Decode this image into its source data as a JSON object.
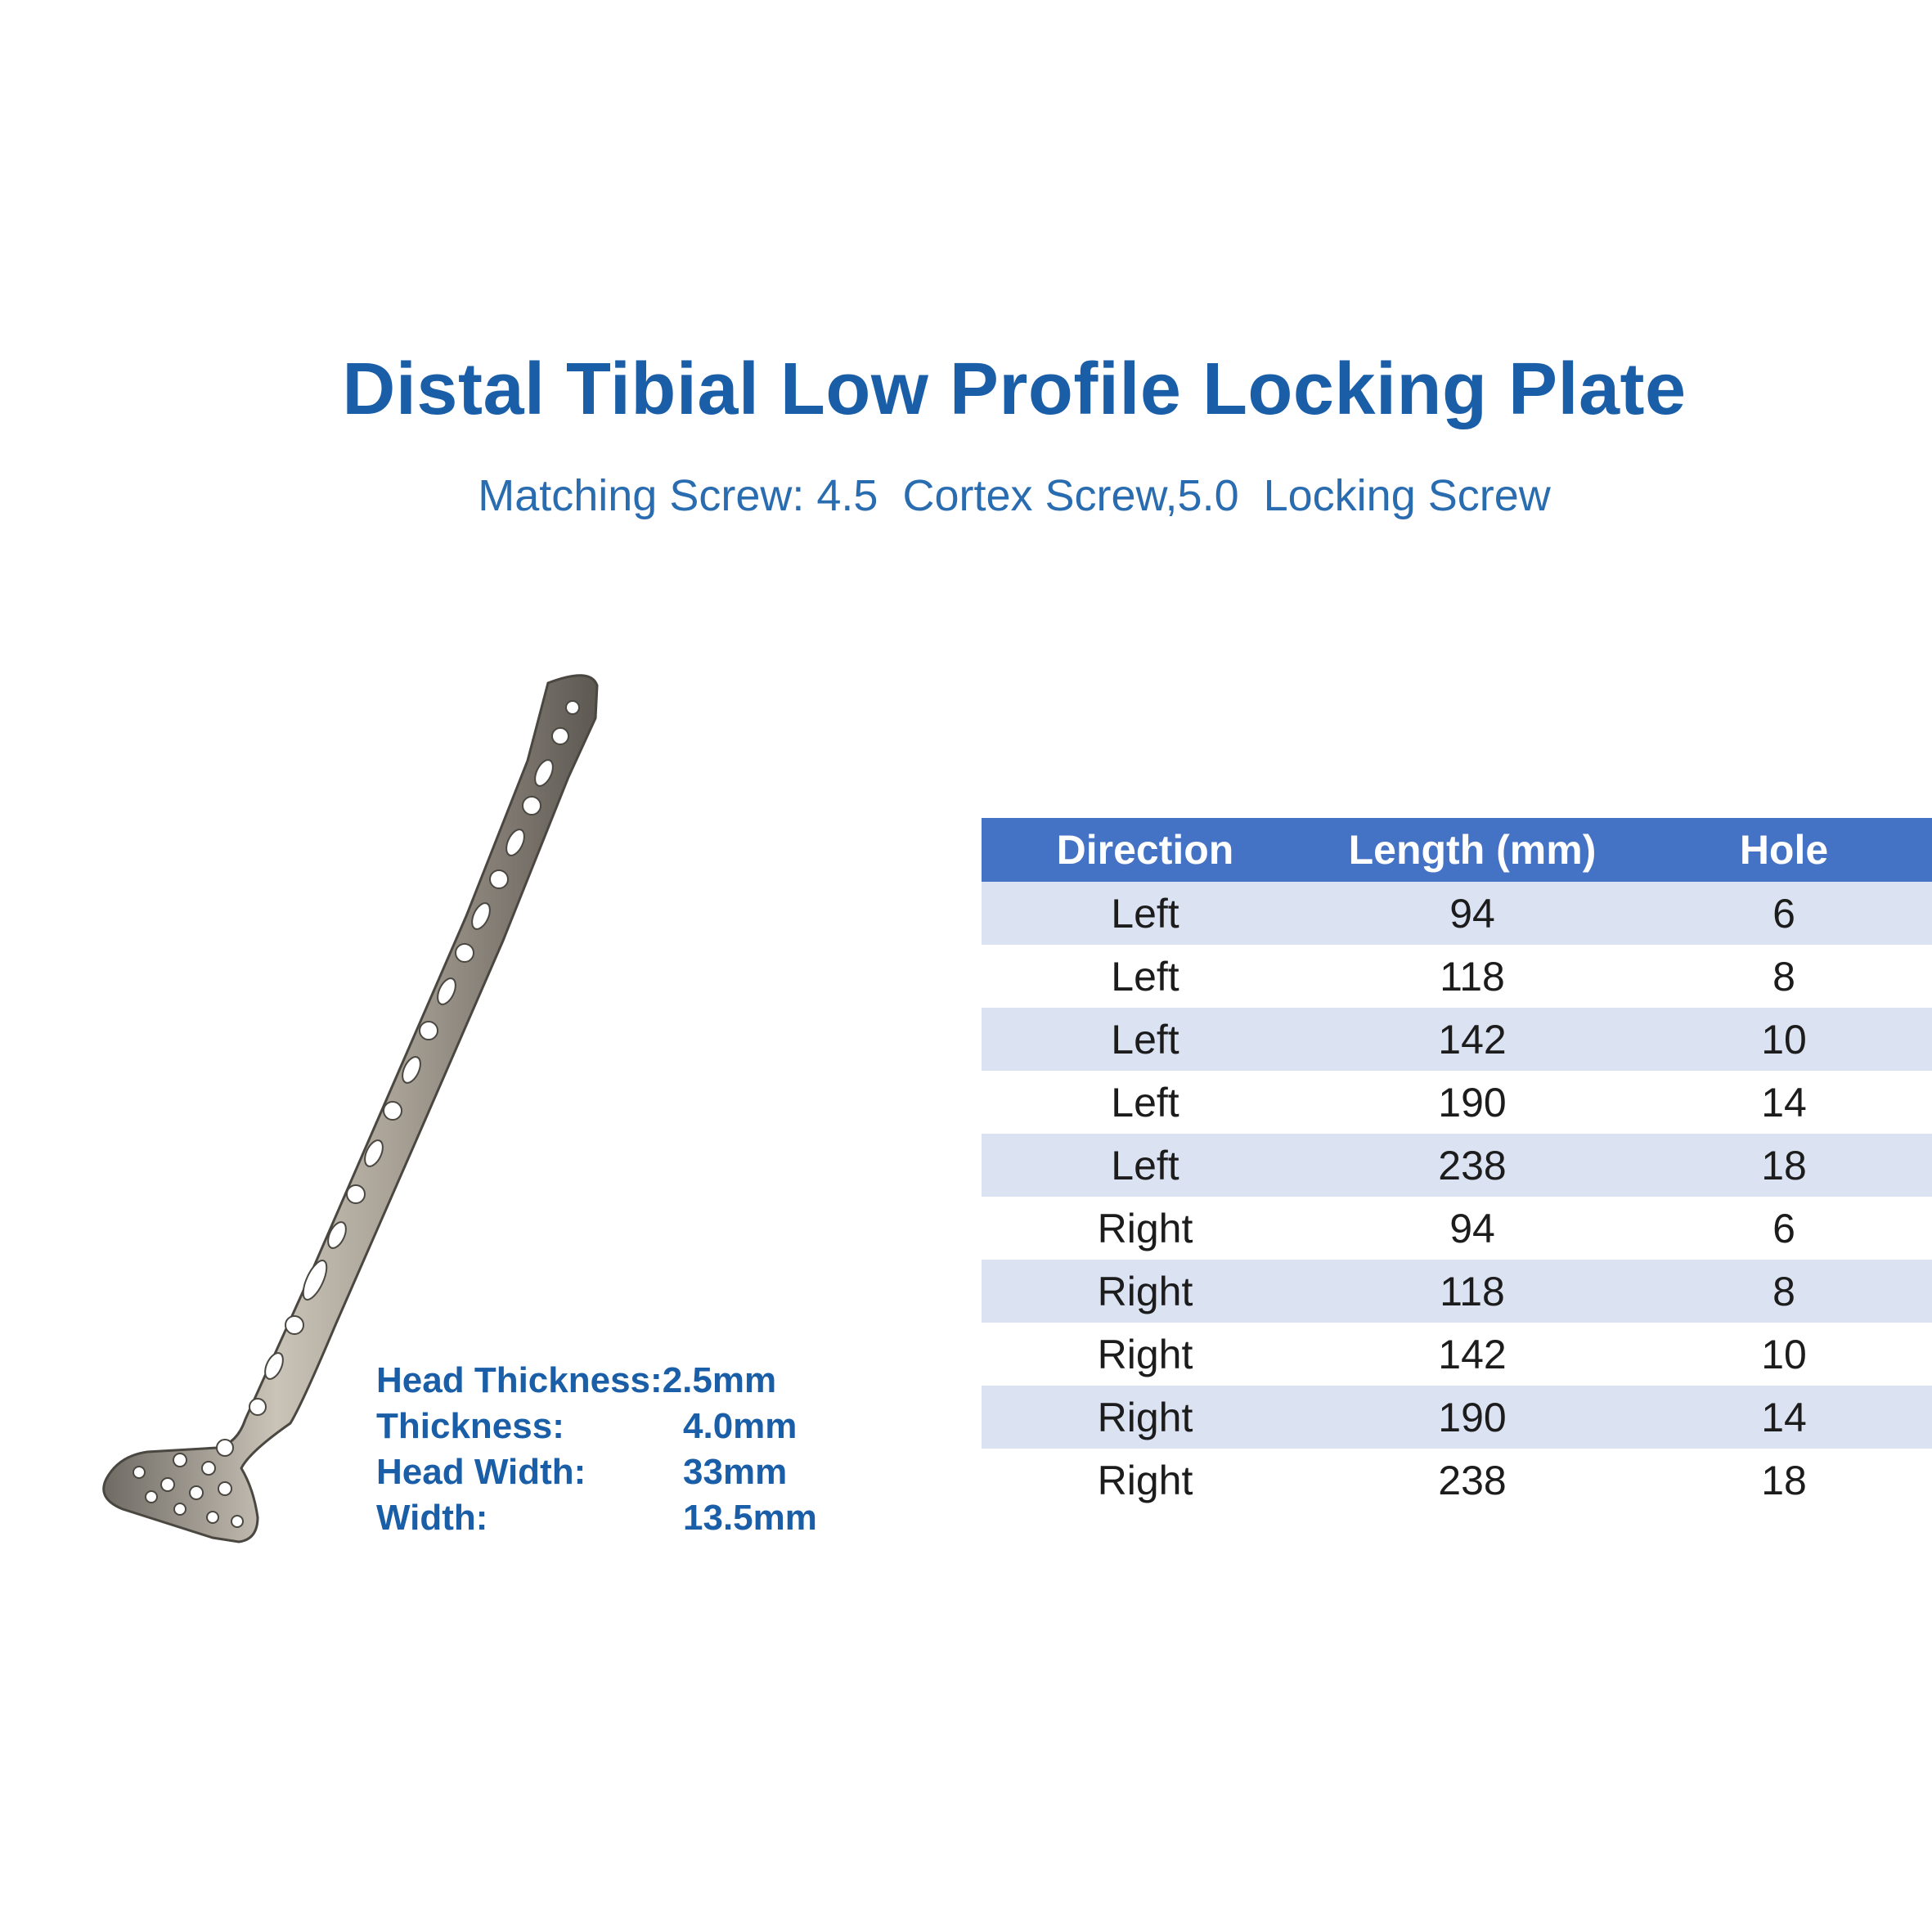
{
  "title": "Distal Tibial Low Profile Locking Plate",
  "subtitle": "Matching Screw: 4.5  Cortex Screw,5.0  Locking Screw",
  "specs": [
    {
      "label": "Head Thickness:",
      "value": "2.5mm"
    },
    {
      "label": "Thickness:",
      "value": "4.0mm"
    },
    {
      "label": "Head Width:",
      "value": "33mm"
    },
    {
      "label": "Width:",
      "value": "13.5mm"
    }
  ],
  "table": {
    "headers": [
      "Direction",
      "Length (mm)",
      "Hole"
    ],
    "rows": [
      [
        "Left",
        "94",
        "6"
      ],
      [
        "Left",
        "118",
        "8"
      ],
      [
        "Left",
        "142",
        "10"
      ],
      [
        "Left",
        "190",
        "14"
      ],
      [
        "Left",
        "238",
        "18"
      ],
      [
        "Right",
        "94",
        "6"
      ],
      [
        "Right",
        "118",
        "8"
      ],
      [
        "Right",
        "142",
        "10"
      ],
      [
        "Right",
        "190",
        "14"
      ],
      [
        "Right",
        "238",
        "18"
      ]
    ]
  },
  "colors": {
    "title": "#1a5ea8",
    "header_bg": "#4472c4",
    "row_shade": "#dbe2f1"
  }
}
